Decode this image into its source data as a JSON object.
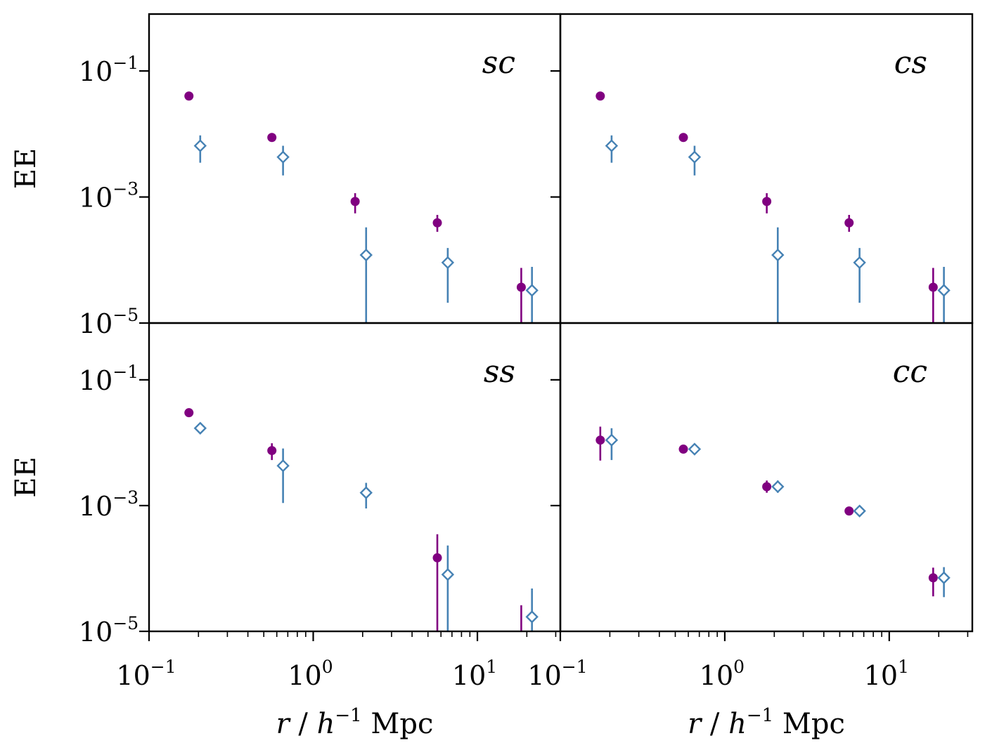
{
  "chart_data": {
    "type": "scatter",
    "layout": "2x2 panel grid, shared axes",
    "x_scale": "log",
    "y_scale": "log",
    "xlim": [
      0.1,
      32
    ],
    "ylim": [
      1e-05,
      0.8
    ],
    "x_ticks": [
      {
        "value": 0.1,
        "base": "10",
        "exp": "−1"
      },
      {
        "value": 1,
        "base": "10",
        "exp": "0"
      },
      {
        "value": 10,
        "base": "10",
        "exp": "1"
      }
    ],
    "y_ticks": [
      {
        "value": 0.1,
        "base": "10",
        "exp": "−1"
      },
      {
        "value": 0.001,
        "base": "10",
        "exp": "−3"
      },
      {
        "value": 1e-05,
        "base": "10",
        "exp": "−5"
      }
    ],
    "xlabel": {
      "var": "r",
      "sep": " / ",
      "h": "h",
      "exp": "−1",
      "unit": " Mpc"
    },
    "ylabel": "EE",
    "grid": false,
    "colors": {
      "series_a": "#800080",
      "series_b": "#4682b4"
    },
    "markers": {
      "series_a": "filled-circle",
      "series_b": "open-diamond"
    },
    "panels": [
      {
        "label": "sc",
        "series_a": [
          {
            "x": 0.175,
            "y": 0.04
          },
          {
            "x": 0.56,
            "y": 0.0088
          },
          {
            "x": 1.8,
            "y": 0.00085,
            "lo": 0.00055,
            "hi": 0.00115
          },
          {
            "x": 5.7,
            "y": 0.00039,
            "lo": 0.00028,
            "hi": 0.00052
          },
          {
            "x": 18.5,
            "y": 3.7e-05,
            "lo": 1e-05,
            "hi": 7.5e-05
          }
        ],
        "series_b": [
          {
            "x": 0.205,
            "y": 0.0065,
            "lo": 0.0035,
            "hi": 0.0095
          },
          {
            "x": 0.655,
            "y": 0.0043,
            "lo": 0.0022,
            "hi": 0.0065
          },
          {
            "x": 2.1,
            "y": 0.00012,
            "lo": 1e-05,
            "hi": 0.00033
          },
          {
            "x": 6.6,
            "y": 9.1e-05,
            "lo": 2.1e-05,
            "hi": 0.000155
          },
          {
            "x": 21.5,
            "y": 3.3e-05,
            "lo": 1e-05,
            "hi": 7.8e-05
          }
        ]
      },
      {
        "label": "cs",
        "series_a": [
          {
            "x": 0.175,
            "y": 0.04
          },
          {
            "x": 0.56,
            "y": 0.0088
          },
          {
            "x": 1.8,
            "y": 0.00085,
            "lo": 0.00055,
            "hi": 0.00115
          },
          {
            "x": 5.7,
            "y": 0.00039,
            "lo": 0.00028,
            "hi": 0.00052
          },
          {
            "x": 18.5,
            "y": 3.7e-05,
            "lo": 1e-05,
            "hi": 7.5e-05
          }
        ],
        "series_b": [
          {
            "x": 0.205,
            "y": 0.0065,
            "lo": 0.0035,
            "hi": 0.0095
          },
          {
            "x": 0.655,
            "y": 0.0043,
            "lo": 0.0022,
            "hi": 0.0065
          },
          {
            "x": 2.1,
            "y": 0.00012,
            "lo": 1e-05,
            "hi": 0.00033
          },
          {
            "x": 6.6,
            "y": 9.1e-05,
            "lo": 2.1e-05,
            "hi": 0.000155
          },
          {
            "x": 21.5,
            "y": 3.3e-05,
            "lo": 1e-05,
            "hi": 7.8e-05
          }
        ]
      },
      {
        "label": "ss",
        "series_a": [
          {
            "x": 0.175,
            "y": 0.03
          },
          {
            "x": 0.56,
            "y": 0.0075,
            "lo": 0.0053,
            "hi": 0.0098
          },
          {
            "x": 5.7,
            "y": 0.000148,
            "lo": 1e-05,
            "hi": 0.00035
          },
          {
            "x": 18.5,
            "y": 6.6e-06,
            "lo": 1e-05,
            "hi": 2.6e-05
          }
        ],
        "series_b": [
          {
            "x": 0.205,
            "y": 0.017
          },
          {
            "x": 0.655,
            "y": 0.0043,
            "lo": 0.0011,
            "hi": 0.0081
          },
          {
            "x": 2.1,
            "y": 0.0016,
            "lo": 0.0009,
            "hi": 0.0023
          },
          {
            "x": 6.6,
            "y": 8e-05,
            "lo": 1e-05,
            "hi": 0.000232
          },
          {
            "x": 21.5,
            "y": 1.7e-05,
            "lo": 1e-05,
            "hi": 4.8e-05
          }
        ]
      },
      {
        "label": "cc",
        "series_a": [
          {
            "x": 0.175,
            "y": 0.011,
            "lo": 0.0052,
            "hi": 0.018
          },
          {
            "x": 0.56,
            "y": 0.0079,
            "lo": 0.0068,
            "hi": 0.0092
          },
          {
            "x": 1.8,
            "y": 0.002,
            "lo": 0.0016,
            "hi": 0.0025
          },
          {
            "x": 5.7,
            "y": 0.00082,
            "lo": 0.00071,
            "hi": 0.00096
          },
          {
            "x": 18.5,
            "y": 7.1e-05,
            "lo": 3.6e-05,
            "hi": 0.000103
          }
        ],
        "series_b": [
          {
            "x": 0.205,
            "y": 0.011,
            "lo": 0.0053,
            "hi": 0.017
          },
          {
            "x": 0.655,
            "y": 0.0079,
            "lo": 0.0072,
            "hi": 0.0088
          },
          {
            "x": 2.1,
            "y": 0.002,
            "lo": 0.0016,
            "hi": 0.0025
          },
          {
            "x": 6.6,
            "y": 0.00082,
            "lo": 0.00074,
            "hi": 0.0009
          },
          {
            "x": 21.5,
            "y": 7.1e-05,
            "lo": 3.5e-05,
            "hi": 0.000105
          }
        ]
      }
    ]
  }
}
